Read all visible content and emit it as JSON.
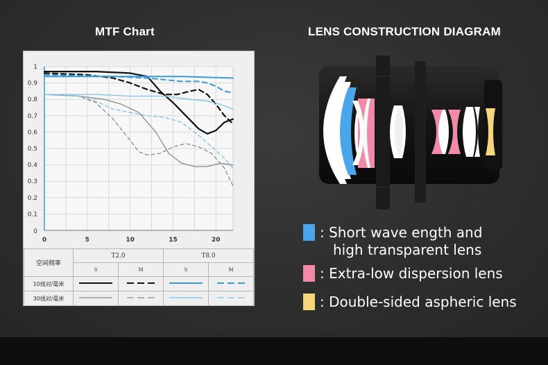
{
  "mtf": {
    "title": "MTF Chart",
    "legend_header": "空间频率",
    "col_t2": "T2.0",
    "col_t8": "T8.0",
    "s_label": "S",
    "m_label": "M",
    "row_10": "10线对/毫米",
    "row_30": "30线对/毫米"
  },
  "chart_data": {
    "type": "line",
    "title": "MTF Chart",
    "xlabel": "",
    "ylabel": "",
    "xlim": [
      0,
      22
    ],
    "ylim": [
      0,
      1
    ],
    "xticks": [
      0,
      5,
      10,
      15,
      20
    ],
    "yticks": [
      0.1,
      0.2,
      0.3,
      0.4,
      0.5,
      0.6,
      0.7,
      0.8,
      0.9,
      1
    ],
    "grid": true,
    "series": [
      {
        "name": "T2.0 10 S",
        "color": "#111111",
        "dash": "solid",
        "width": 2.2,
        "points": [
          [
            0,
            0.97
          ],
          [
            6,
            0.97
          ],
          [
            10,
            0.96
          ],
          [
            12,
            0.94
          ],
          [
            13.5,
            0.85
          ],
          [
            15,
            0.78
          ],
          [
            16.5,
            0.7
          ],
          [
            18,
            0.62
          ],
          [
            19,
            0.59
          ],
          [
            20,
            0.61
          ],
          [
            21,
            0.66
          ],
          [
            22,
            0.68
          ]
        ]
      },
      {
        "name": "T2.0 10 M",
        "color": "#111111",
        "dash": "dashed",
        "width": 2.2,
        "points": [
          [
            0,
            0.96
          ],
          [
            5,
            0.95
          ],
          [
            8,
            0.93
          ],
          [
            10,
            0.9
          ],
          [
            12,
            0.86
          ],
          [
            14,
            0.83
          ],
          [
            15.5,
            0.83
          ],
          [
            17,
            0.85
          ],
          [
            18,
            0.86
          ],
          [
            19,
            0.83
          ],
          [
            20,
            0.77
          ],
          [
            21,
            0.7
          ],
          [
            22,
            0.65
          ]
        ]
      },
      {
        "name": "T8.0 10 S",
        "color": "#3a9ad9",
        "dash": "solid",
        "width": 2,
        "points": [
          [
            0,
            0.94
          ],
          [
            10,
            0.94
          ],
          [
            16,
            0.94
          ],
          [
            22,
            0.93
          ]
        ]
      },
      {
        "name": "T8.0 10 M",
        "color": "#3a9ad9",
        "dash": "dashed",
        "width": 2,
        "points": [
          [
            0,
            0.95
          ],
          [
            8,
            0.94
          ],
          [
            12,
            0.93
          ],
          [
            16,
            0.91
          ],
          [
            18,
            0.91
          ],
          [
            19,
            0.9
          ],
          [
            20,
            0.88
          ],
          [
            21,
            0.85
          ],
          [
            22,
            0.84
          ]
        ]
      },
      {
        "name": "T2.0 30 S",
        "color": "#8a8a8a",
        "dash": "solid",
        "width": 1.3,
        "points": [
          [
            0,
            0.83
          ],
          [
            4,
            0.82
          ],
          [
            7,
            0.8
          ],
          [
            9,
            0.77
          ],
          [
            11,
            0.72
          ],
          [
            13,
            0.6
          ],
          [
            14.5,
            0.47
          ],
          [
            16,
            0.41
          ],
          [
            17.5,
            0.39
          ],
          [
            19,
            0.39
          ],
          [
            20.5,
            0.41
          ],
          [
            22,
            0.4
          ]
        ]
      },
      {
        "name": "T2.0 30 M",
        "color": "#8a8a8a",
        "dash": "dashed",
        "width": 1.3,
        "points": [
          [
            0,
            0.83
          ],
          [
            4,
            0.82
          ],
          [
            6,
            0.78
          ],
          [
            8,
            0.68
          ],
          [
            10,
            0.55
          ],
          [
            11,
            0.48
          ],
          [
            12,
            0.46
          ],
          [
            13.5,
            0.47
          ],
          [
            15,
            0.51
          ],
          [
            16.5,
            0.53
          ],
          [
            18,
            0.51
          ],
          [
            19.5,
            0.47
          ],
          [
            21,
            0.38
          ],
          [
            22,
            0.27
          ]
        ]
      },
      {
        "name": "T8.0 30 S",
        "color": "#7cc3ea",
        "dash": "solid",
        "width": 1.3,
        "points": [
          [
            0,
            0.83
          ],
          [
            6,
            0.83
          ],
          [
            10,
            0.82
          ],
          [
            14,
            0.82
          ],
          [
            17,
            0.8
          ],
          [
            19,
            0.79
          ],
          [
            20.5,
            0.77
          ],
          [
            22,
            0.74
          ]
        ]
      },
      {
        "name": "T8.0 30 M",
        "color": "#7cc3ea",
        "dash": "dashed",
        "width": 1.3,
        "points": [
          [
            0,
            0.83
          ],
          [
            4,
            0.82
          ],
          [
            6,
            0.79
          ],
          [
            8,
            0.74
          ],
          [
            10,
            0.72
          ],
          [
            12,
            0.7
          ],
          [
            14,
            0.69
          ],
          [
            16,
            0.66
          ],
          [
            18,
            0.58
          ],
          [
            19.5,
            0.51
          ],
          [
            21,
            0.44
          ],
          [
            22,
            0.38
          ]
        ]
      }
    ]
  },
  "lens": {
    "title": "LENS CONSTRUCTION DIAGRAM",
    "key": [
      {
        "color": "#4aa6e8",
        "line1": ": Short wave ength and",
        "line2": "high transparent lens"
      },
      {
        "color": "#f08aa6",
        "line1": ": Extra-low dispersion lens",
        "line2": ""
      },
      {
        "color": "#f6d67a",
        "line1": ": Double-sided aspheric lens",
        "line2": ""
      }
    ]
  }
}
